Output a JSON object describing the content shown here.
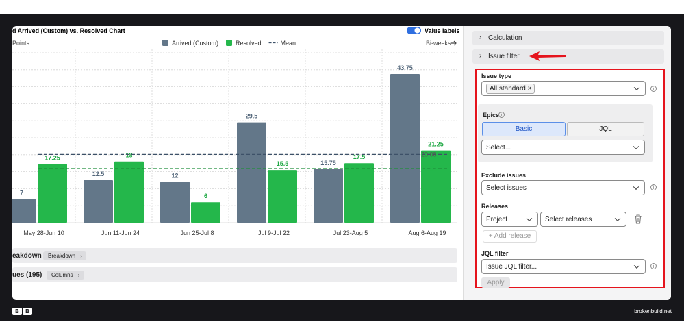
{
  "chart_data": {
    "type": "bar",
    "title": "d Arrived (Custom) vs. Resolved Chart",
    "y_axis_label": "Points",
    "x_axis_label": "Bi-weeks",
    "toggle_label": "Value labels",
    "categories": [
      "May 28-Jun 10",
      "Jun 11-Jun 24",
      "Jun 25-Jul 8",
      "Jul 9-Jul 22",
      "Jul 23-Aug 5",
      "Aug 6-Aug 19"
    ],
    "series": [
      {
        "name": "Arrived (Custom)",
        "color": "#637789",
        "label_color": "#52667a",
        "values": [
          7,
          12.5,
          12,
          29.5,
          15.75,
          43.75
        ]
      },
      {
        "name": "Resolved",
        "color": "#24b74b",
        "label_color": "#1fa844",
        "values": [
          17.25,
          18,
          6,
          15.5,
          17.5,
          21.25
        ]
      }
    ],
    "mean": {
      "name": "Mean",
      "values": [
        20.08,
        15.92
      ]
    },
    "ylim": [
      0,
      50
    ]
  },
  "sections": [
    {
      "title": "eakdown",
      "button": "Breakdown"
    },
    {
      "title": "ues (195)",
      "button": "Columns"
    }
  ],
  "sidebar": {
    "collapsibles": [
      "Calculation",
      "Issue filter"
    ],
    "issue_type": {
      "label": "Issue type",
      "chip": "All standard"
    },
    "epics": {
      "label": "Epics",
      "tabs": [
        "Basic",
        "JQL"
      ],
      "placeholder": "Select..."
    },
    "exclude": {
      "label": "Exclude issues",
      "placeholder": "Select issues"
    },
    "releases": {
      "label": "Releases",
      "field": "Project",
      "placeholder": "Select releases",
      "add": "+ Add release"
    },
    "jql": {
      "label": "JQL filter",
      "placeholder": "Issue JQL filter...",
      "apply": "Apply"
    }
  },
  "footer": {
    "logo": [
      "B",
      "B"
    ],
    "brand": "brokenbuild.net"
  }
}
